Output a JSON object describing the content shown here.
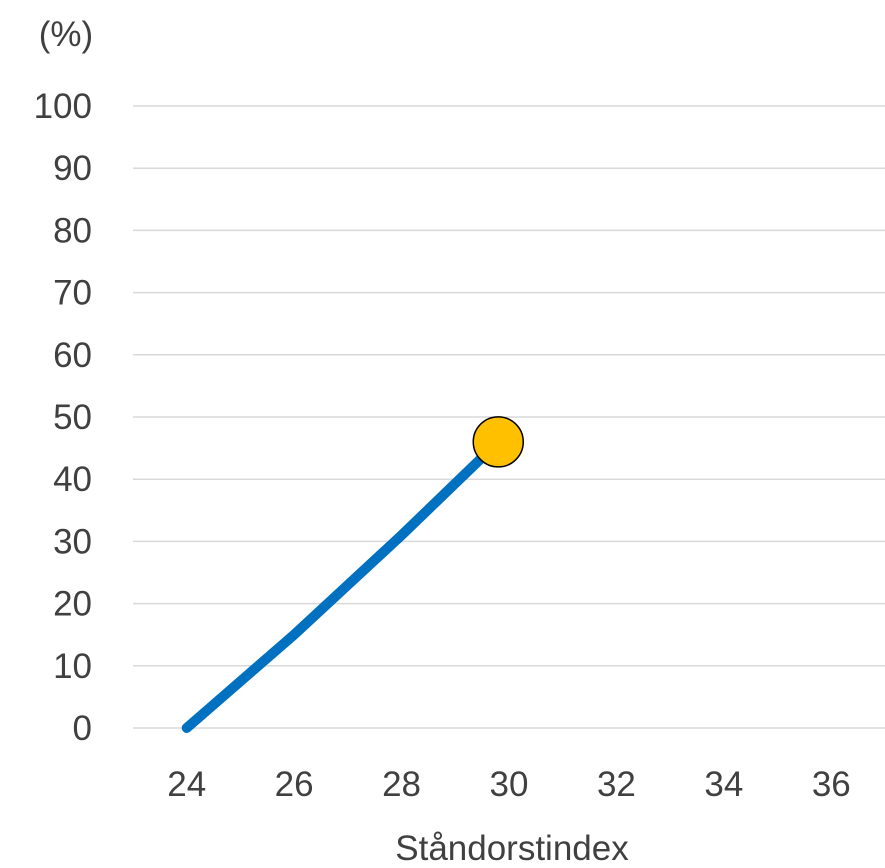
{
  "chart_data": {
    "type": "line",
    "title": "",
    "xlabel": "Ståndorstindex",
    "ylabel": "(%)",
    "xlim": [
      23,
      37
    ],
    "ylim": [
      0,
      100
    ],
    "x_ticks": [
      24,
      26,
      28,
      30,
      32,
      34,
      36
    ],
    "y_ticks": [
      0,
      10,
      20,
      30,
      40,
      50,
      60,
      70,
      80,
      90,
      100
    ],
    "grid": true,
    "legend": "none",
    "series": [
      {
        "color": "#0070c0",
        "points": [
          [
            24,
            0
          ],
          [
            26,
            15
          ],
          [
            28,
            31
          ],
          [
            29.8,
            46
          ]
        ]
      }
    ],
    "markers": [
      {
        "x": 29.8,
        "y": 46,
        "fill": "#ffc000",
        "stroke": "#000000"
      }
    ]
  }
}
